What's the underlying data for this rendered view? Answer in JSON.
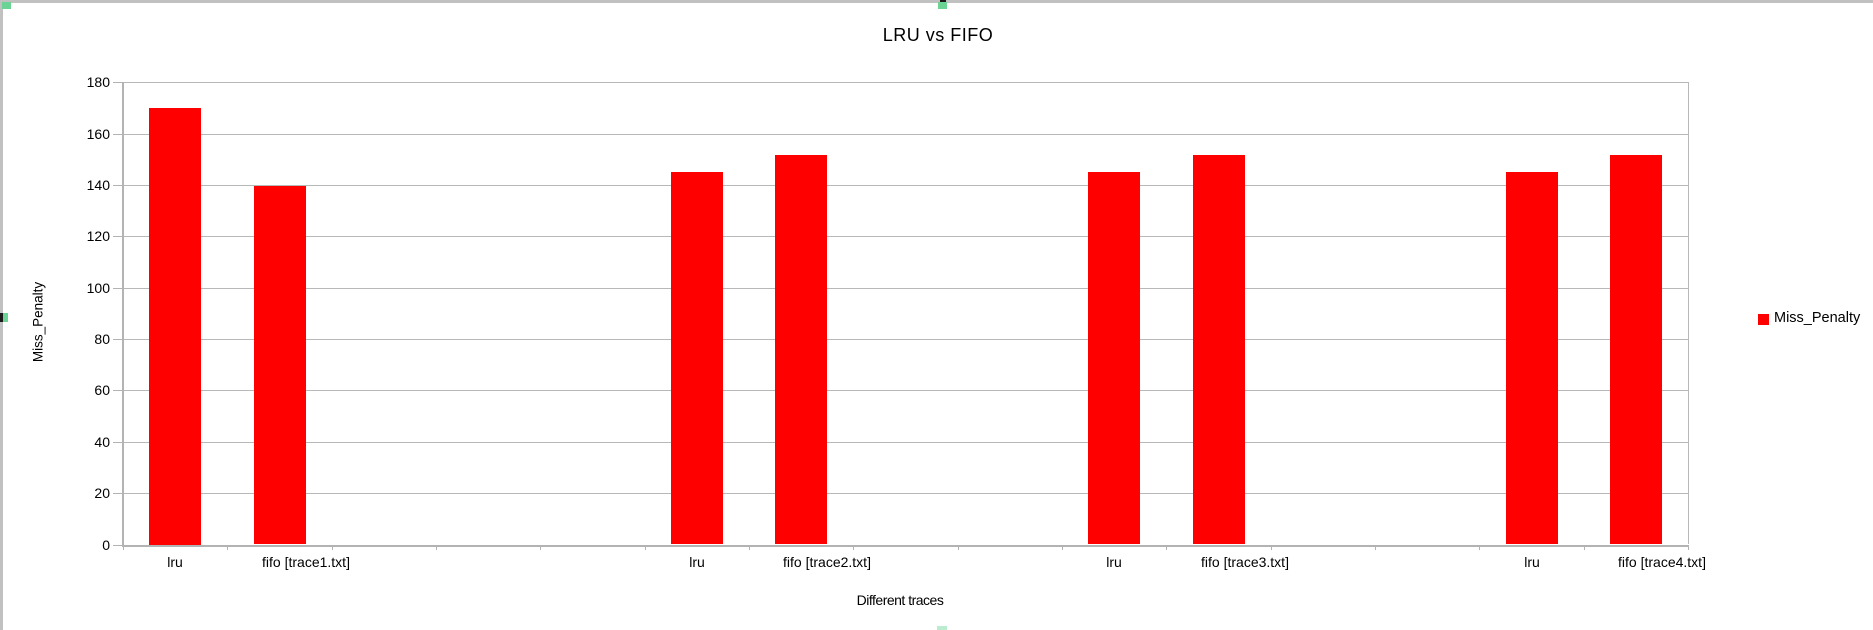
{
  "app": {
    "context_note": "spreadsheet chart object in edit/selected state",
    "frame_color": "#c1c1c1",
    "selection_handle_color": "#6bd495",
    "chart_background": "#ffffff",
    "gridline_color": "#b8b8b8",
    "axis_color": "#b3b3b3"
  },
  "chart_data": {
    "type": "bar",
    "title": "LRU vs FIFO",
    "xlabel": "Different traces",
    "ylabel": "Miss_Penalty",
    "ylim": [
      0,
      180
    ],
    "ytick_interval": 20,
    "ytick_labels": [
      "0",
      "20",
      "40",
      "60",
      "80",
      "100",
      "120",
      "140",
      "160",
      "180"
    ],
    "grid": "horizontal",
    "bar_color": "#ff0000",
    "legend": {
      "position": "right",
      "entries": [
        {
          "label": "Miss_Penalty",
          "color": "#ff0000"
        }
      ]
    },
    "series": [
      {
        "name": "Miss_Penalty",
        "color": "#ff0000"
      }
    ],
    "categories": [
      "lru",
      "fifo [trace1.txt]",
      "",
      "",
      "",
      "lru",
      "fifo [trace2.txt]",
      "",
      "",
      "lru",
      "fifo [trace3.txt]",
      "",
      "",
      "lru",
      "fifo [trace4.txt]"
    ],
    "values": [
      170,
      139.5,
      null,
      null,
      null,
      145,
      151.5,
      null,
      null,
      145,
      151.5,
      null,
      null,
      145,
      151.5
    ],
    "summary": [
      {
        "trace": "trace1.txt",
        "lru": 170,
        "fifo": 139.5
      },
      {
        "trace": "trace2.txt",
        "lru": 145,
        "fifo": 151.5
      },
      {
        "trace": "trace3.txt",
        "lru": 145,
        "fifo": 151.5
      },
      {
        "trace": "trace4.txt",
        "lru": 145,
        "fifo": 151.5
      }
    ]
  }
}
